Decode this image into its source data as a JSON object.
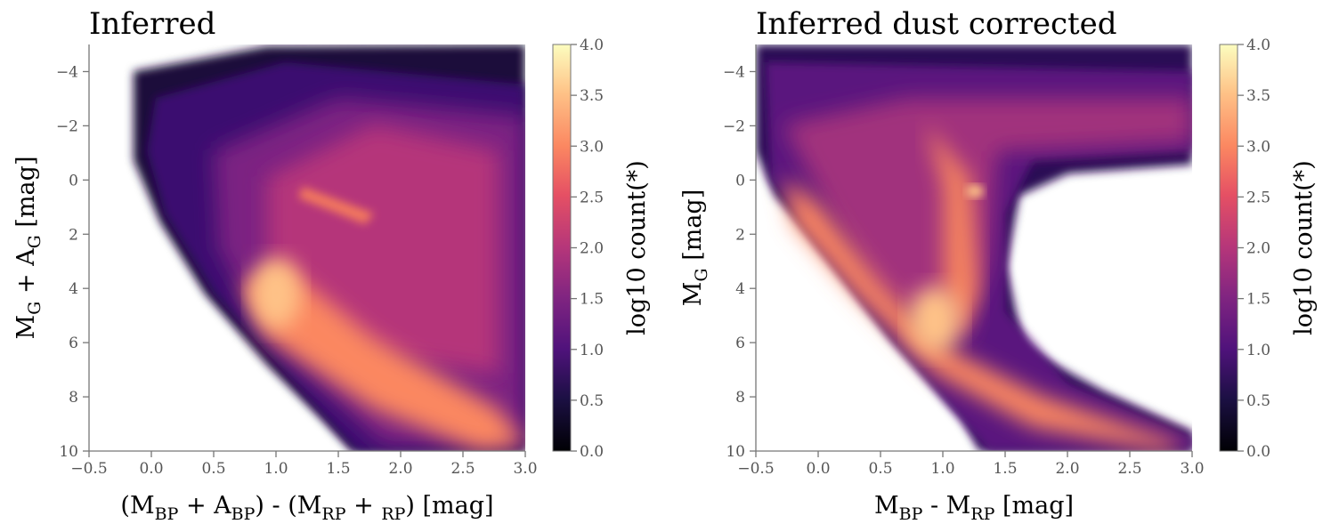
{
  "chart_data": [
    {
      "type": "heatmap",
      "title": "Inferred",
      "xlabel": [
        {
          "text": "(M"
        },
        {
          "text": "BP",
          "sub": true
        },
        {
          "text": " + A"
        },
        {
          "text": "BP",
          "sub": true
        },
        {
          "text": ") - (M"
        },
        {
          "text": "RP",
          "sub": true
        },
        {
          "text": " + "
        },
        {
          "text": "RP",
          "sub": true
        },
        {
          "text": ") [mag]"
        }
      ],
      "ylabel": [
        {
          "text": "M"
        },
        {
          "text": "G",
          "sub": true
        },
        {
          "text": " + A"
        },
        {
          "text": "G",
          "sub": true
        },
        {
          "text": " [mag]"
        }
      ],
      "xlim": [
        -0.5,
        3.0
      ],
      "ylim": [
        -5,
        10
      ],
      "y_inverted": true,
      "xticks": [
        {
          "value": -0.5,
          "label": "−0.5"
        },
        {
          "value": 0,
          "label": "0.0"
        },
        0.5,
        {
          "value": 1,
          "label": "1.0"
        },
        1.5,
        {
          "value": 2,
          "label": "2.0"
        },
        2.5,
        {
          "value": 3,
          "label": "3.0"
        }
      ],
      "yticks": [
        {
          "value": -4,
          "label": "−4"
        },
        {
          "value": -2,
          "label": "−2"
        },
        0,
        2,
        4,
        6,
        8,
        10
      ],
      "colorbar": {
        "label": "log10 count(*)",
        "lim": [
          0,
          4
        ],
        "colormap": "magma",
        "ticks": [
          {
            "value": 0,
            "label": "0.0"
          },
          0.5,
          {
            "value": 1,
            "label": "1.0"
          },
          1.5,
          {
            "value": 2,
            "label": "2.0"
          },
          2.5,
          {
            "value": 3,
            "label": "3.0"
          },
          3.5,
          {
            "value": 4,
            "label": "4.0"
          }
        ]
      }
    },
    {
      "type": "heatmap",
      "title": "Inferred dust corrected",
      "xlabel": [
        {
          "text": "M"
        },
        {
          "text": "BP",
          "sub": true
        },
        {
          "text": " - M"
        },
        {
          "text": "RP",
          "sub": true
        },
        {
          "text": " [mag]"
        }
      ],
      "ylabel": [
        {
          "text": "M"
        },
        {
          "text": "G",
          "sub": true
        },
        {
          "text": " [mag]"
        }
      ],
      "xlim": [
        -0.5,
        3.0
      ],
      "ylim": [
        -5,
        10
      ],
      "y_inverted": true,
      "xticks": [
        {
          "value": -0.5,
          "label": "−0.5"
        },
        {
          "value": 0,
          "label": "0.0"
        },
        0.5,
        {
          "value": 1,
          "label": "1.0"
        },
        1.5,
        {
          "value": 2,
          "label": "2.0"
        },
        2.5,
        {
          "value": 3,
          "label": "3.0"
        }
      ],
      "yticks": [
        {
          "value": -4,
          "label": "−4"
        },
        {
          "value": -2,
          "label": "−2"
        },
        0,
        2,
        4,
        6,
        8,
        10
      ],
      "colorbar": {
        "label": "log10 count(*)",
        "lim": [
          0,
          4
        ],
        "colormap": "magma",
        "ticks": [
          {
            "value": 0,
            "label": "0.0"
          },
          0.5,
          {
            "value": 1,
            "label": "1.0"
          },
          1.5,
          {
            "value": 2,
            "label": "2.0"
          },
          2.5,
          {
            "value": 3,
            "label": "3.0"
          },
          3.5,
          {
            "value": 4,
            "label": "4.0"
          }
        ]
      }
    }
  ]
}
